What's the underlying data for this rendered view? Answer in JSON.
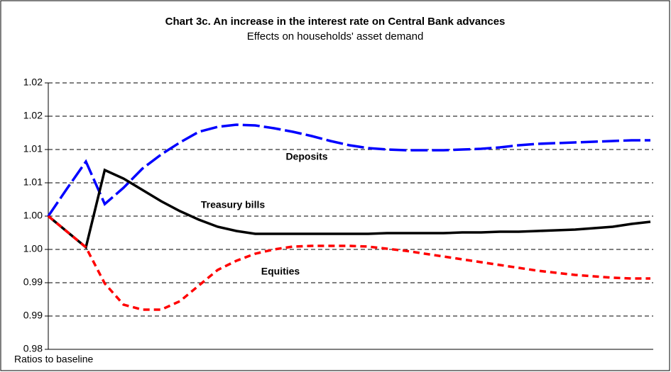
{
  "chart_data": {
    "type": "line",
    "title": "Chart 3c.  An increase in the interest rate on Central Bank advances",
    "subtitle": "Effects on households' asset demand",
    "note": "Ratios to baseline",
    "annotations": [
      "Deposits",
      "Treasury bills",
      "Equities"
    ],
    "categories": [
      null,
      null,
      null,
      null,
      null,
      null,
      null,
      null,
      null,
      null,
      null,
      null,
      null,
      null,
      null,
      null,
      null,
      null,
      null,
      null,
      null,
      null,
      null,
      null,
      null,
      null,
      null,
      null,
      null,
      null,
      null,
      null,
      null
    ],
    "ylim": [
      0.98,
      1.02
    ],
    "yticks": [
      0.98,
      {
        "value": 0.985,
        "label": "0.99"
      },
      0.99,
      {
        "value": 0.995,
        "label": "1.00"
      },
      {
        "value": 1.0,
        "label": "1.00"
      },
      {
        "value": 1.005,
        "label": "1.01"
      },
      1.01,
      {
        "value": 1.015,
        "label": "1.02"
      },
      1.02
    ],
    "grid": true,
    "series": [
      {
        "name": "Deposits",
        "color": "#0000ff",
        "style": "dashed",
        "values": [
          1.0,
          1.00415,
          1.00819,
          1.00181,
          1.00426,
          1.00713,
          1.00926,
          1.01106,
          1.01266,
          1.0134,
          1.01372,
          1.01362,
          1.01319,
          1.01266,
          1.01202,
          1.01128,
          1.01064,
          1.01021,
          1.01,
          1.00989,
          1.00989,
          1.00989,
          1.01,
          1.01011,
          1.01032,
          1.01064,
          1.01085,
          1.01096,
          1.01106,
          1.01117,
          1.01128,
          1.01138,
          1.01138
        ]
      },
      {
        "name": "Treasury bills",
        "color": "#000000",
        "style": "solid",
        "values": [
          1.0,
          0.99766,
          0.99532,
          1.00691,
          1.00564,
          1.00394,
          1.00223,
          1.00074,
          0.99947,
          0.9984,
          0.99777,
          0.99734,
          0.99734,
          0.99734,
          0.99734,
          0.99734,
          0.99734,
          0.99734,
          0.99745,
          0.99745,
          0.99745,
          0.99745,
          0.99755,
          0.99755,
          0.99766,
          0.99766,
          0.99777,
          0.99787,
          0.99798,
          0.99819,
          0.9984,
          0.99883,
          0.99915
        ]
      },
      {
        "name": "Equities",
        "color": "#ff0000",
        "style": "dotted",
        "values": [
          1.0,
          0.99766,
          0.99532,
          0.98989,
          0.9867,
          0.98596,
          0.98596,
          0.98723,
          0.98957,
          0.99191,
          0.9933,
          0.99436,
          0.995,
          0.99543,
          0.99553,
          0.99553,
          0.99553,
          0.99543,
          0.99511,
          0.99479,
          0.99436,
          0.99394,
          0.99351,
          0.99309,
          0.99266,
          0.99223,
          0.99181,
          0.99149,
          0.99117,
          0.99096,
          0.99074,
          0.99064,
          0.99064
        ]
      }
    ]
  }
}
